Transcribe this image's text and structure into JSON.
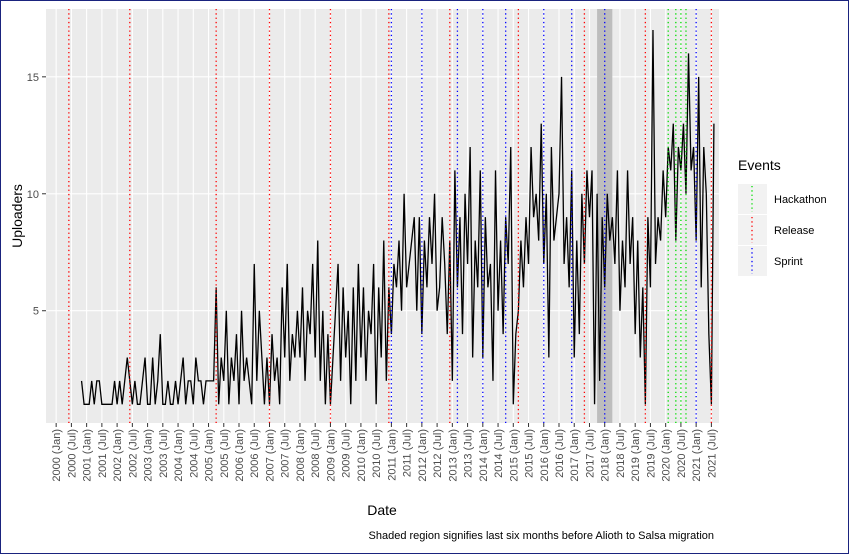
{
  "chart_data": {
    "type": "line",
    "xlabel": "Date",
    "ylabel": "Uploaders",
    "caption": "Shaded region signifies last six months before Alioth to Salsa migration",
    "legend_title": "Events",
    "grid": true,
    "xlim": [
      "1999-09",
      "2021-10"
    ],
    "ylim": [
      0.2,
      17.9
    ],
    "yticks": [
      5,
      10,
      15
    ],
    "xticks": [
      {
        "value": "2000-01",
        "label": "2000 (Jan)"
      },
      {
        "value": "2000-07",
        "label": "2000 (Jul)"
      },
      {
        "value": "2001-01",
        "label": "2001 (Jan)"
      },
      {
        "value": "2001-07",
        "label": "2001 (Jul)"
      },
      {
        "value": "2002-01",
        "label": "2002 (Jan)"
      },
      {
        "value": "2002-07",
        "label": "2002 (Jul)"
      },
      {
        "value": "2003-01",
        "label": "2003 (Jan)"
      },
      {
        "value": "2003-07",
        "label": "2003 (Jul)"
      },
      {
        "value": "2004-01",
        "label": "2004 (Jan)"
      },
      {
        "value": "2004-07",
        "label": "2004 (Jul)"
      },
      {
        "value": "2005-01",
        "label": "2005 (Jan)"
      },
      {
        "value": "2005-07",
        "label": "2005 (Jul)"
      },
      {
        "value": "2006-01",
        "label": "2006 (Jan)"
      },
      {
        "value": "2006-07",
        "label": "2006 (Jul)"
      },
      {
        "value": "2007-01",
        "label": "2007 (Jan)"
      },
      {
        "value": "2007-07",
        "label": "2007 (Jul)"
      },
      {
        "value": "2008-01",
        "label": "2008 (Jan)"
      },
      {
        "value": "2008-07",
        "label": "2008 (Jul)"
      },
      {
        "value": "2009-01",
        "label": "2009 (Jan)"
      },
      {
        "value": "2009-07",
        "label": "2009 (Jul)"
      },
      {
        "value": "2010-01",
        "label": "2010 (Jan)"
      },
      {
        "value": "2010-07",
        "label": "2010 (Jul)"
      },
      {
        "value": "2011-01",
        "label": "2011 (Jan)"
      },
      {
        "value": "2011-07",
        "label": "2011 (Jul)"
      },
      {
        "value": "2012-01",
        "label": "2012 (Jan)"
      },
      {
        "value": "2012-07",
        "label": "2012 (Jul)"
      },
      {
        "value": "2013-01",
        "label": "2013 (Jan)"
      },
      {
        "value": "2013-07",
        "label": "2013 (Jul)"
      },
      {
        "value": "2014-01",
        "label": "2014 (Jan)"
      },
      {
        "value": "2014-07",
        "label": "2014 (Jul)"
      },
      {
        "value": "2015-01",
        "label": "2015 (Jan)"
      },
      {
        "value": "2015-07",
        "label": "2015 (Jul)"
      },
      {
        "value": "2016-01",
        "label": "2016 (Jan)"
      },
      {
        "value": "2016-07",
        "label": "2016 (Jul)"
      },
      {
        "value": "2017-01",
        "label": "2017 (Jan)"
      },
      {
        "value": "2017-07",
        "label": "2017 (Jul)"
      },
      {
        "value": "2018-01",
        "label": "2018 (Jan)"
      },
      {
        "value": "2018-07",
        "label": "2018 (Jul)"
      },
      {
        "value": "2019-01",
        "label": "2019 (Jan)"
      },
      {
        "value": "2019-07",
        "label": "2019 (Jul)"
      },
      {
        "value": "2020-01",
        "label": "2020 (Jan)"
      },
      {
        "value": "2020-07",
        "label": "2020 (Jul)"
      },
      {
        "value": "2021-01",
        "label": "2021 (Jan)"
      },
      {
        "value": "2021-07",
        "label": "2021 (Jul)"
      }
    ],
    "shaded_region": [
      "2017-10",
      "2018-04"
    ],
    "shade_color": "#bdbdbd",
    "events": [
      {
        "name": "Hackathon",
        "color": "#00dd00",
        "dates": [
          "2020-02",
          "2020-05",
          "2020-07",
          "2020-09"
        ]
      },
      {
        "name": "Release",
        "color": "#ff0000",
        "dates": [
          "2000-06",
          "2002-06",
          "2005-04",
          "2007-01",
          "2009-01",
          "2010-12",
          "2012-12",
          "2015-03",
          "2017-05",
          "2019-05",
          "2021-07"
        ]
      },
      {
        "name": "Sprint",
        "color": "#0000ff",
        "dates": [
          "2011-01",
          "2012-01",
          "2013-03",
          "2014-01",
          "2014-10",
          "2016-01",
          "2016-12",
          "2018-01",
          "2021-01"
        ]
      }
    ],
    "x": [
      "2000-11",
      "2000-12",
      "2001-01",
      "2001-02",
      "2001-03",
      "2001-04",
      "2001-05",
      "2001-06",
      "2001-07",
      "2001-08",
      "2001-09",
      "2001-10",
      "2001-11",
      "2001-12",
      "2002-01",
      "2002-02",
      "2002-03",
      "2002-04",
      "2002-05",
      "2002-06",
      "2002-07",
      "2002-08",
      "2002-09",
      "2002-10",
      "2002-11",
      "2002-12",
      "2003-01",
      "2003-02",
      "2003-03",
      "2003-04",
      "2003-05",
      "2003-06",
      "2003-07",
      "2003-08",
      "2003-09",
      "2003-10",
      "2003-11",
      "2003-12",
      "2004-01",
      "2004-02",
      "2004-03",
      "2004-04",
      "2004-05",
      "2004-06",
      "2004-07",
      "2004-08",
      "2004-09",
      "2004-10",
      "2004-11",
      "2004-12",
      "2005-01",
      "2005-02",
      "2005-03",
      "2005-04",
      "2005-05",
      "2005-06",
      "2005-07",
      "2005-08",
      "2005-09",
      "2005-10",
      "2005-11",
      "2005-12",
      "2006-01",
      "2006-02",
      "2006-03",
      "2006-04",
      "2006-05",
      "2006-06",
      "2006-07",
      "2006-08",
      "2006-09",
      "2006-10",
      "2006-11",
      "2006-12",
      "2007-01",
      "2007-02",
      "2007-03",
      "2007-04",
      "2007-05",
      "2007-06",
      "2007-07",
      "2007-08",
      "2007-09",
      "2007-10",
      "2007-11",
      "2007-12",
      "2008-01",
      "2008-02",
      "2008-03",
      "2008-04",
      "2008-05",
      "2008-06",
      "2008-07",
      "2008-08",
      "2008-09",
      "2008-10",
      "2008-11",
      "2008-12",
      "2009-01",
      "2009-02",
      "2009-03",
      "2009-04",
      "2009-05",
      "2009-06",
      "2009-07",
      "2009-08",
      "2009-09",
      "2009-10",
      "2009-11",
      "2009-12",
      "2010-01",
      "2010-02",
      "2010-03",
      "2010-04",
      "2010-05",
      "2010-06",
      "2010-07",
      "2010-08",
      "2010-09",
      "2010-10",
      "2010-11",
      "2010-12",
      "2011-01",
      "2011-02",
      "2011-03",
      "2011-04",
      "2011-05",
      "2011-06",
      "2011-07",
      "2011-08",
      "2011-09",
      "2011-10",
      "2011-11",
      "2011-12",
      "2012-01",
      "2012-02",
      "2012-03",
      "2012-04",
      "2012-05",
      "2012-06",
      "2012-07",
      "2012-08",
      "2012-09",
      "2012-10",
      "2012-11",
      "2012-12",
      "2013-01",
      "2013-02",
      "2013-03",
      "2013-04",
      "2013-05",
      "2013-06",
      "2013-07",
      "2013-08",
      "2013-09",
      "2013-10",
      "2013-11",
      "2013-12",
      "2014-01",
      "2014-02",
      "2014-03",
      "2014-04",
      "2014-05",
      "2014-06",
      "2014-07",
      "2014-08",
      "2014-09",
      "2014-10",
      "2014-11",
      "2014-12",
      "2015-01",
      "2015-02",
      "2015-03",
      "2015-04",
      "2015-05",
      "2015-06",
      "2015-07",
      "2015-08",
      "2015-09",
      "2015-10",
      "2015-11",
      "2015-12",
      "2016-01",
      "2016-02",
      "2016-03",
      "2016-04",
      "2016-05",
      "2016-06",
      "2016-07",
      "2016-08",
      "2016-09",
      "2016-10",
      "2016-11",
      "2016-12",
      "2017-01",
      "2017-02",
      "2017-03",
      "2017-04",
      "2017-05",
      "2017-06",
      "2017-07",
      "2017-08",
      "2017-09",
      "2017-10",
      "2017-11",
      "2017-12",
      "2018-01",
      "2018-02",
      "2018-03",
      "2018-04",
      "2018-05",
      "2018-06",
      "2018-07",
      "2018-08",
      "2018-09",
      "2018-10",
      "2018-11",
      "2018-12",
      "2019-01",
      "2019-02",
      "2019-03",
      "2019-04",
      "2019-05",
      "2019-06",
      "2019-07",
      "2019-08",
      "2019-09",
      "2019-10",
      "2019-11",
      "2019-12",
      "2020-01",
      "2020-02",
      "2020-03",
      "2020-04",
      "2020-05",
      "2020-06",
      "2020-07",
      "2020-08",
      "2020-09",
      "2020-10",
      "2020-11",
      "2020-12",
      "2021-01",
      "2021-02",
      "2021-03",
      "2021-04",
      "2021-05",
      "2021-06",
      "2021-07",
      "2021-08"
    ],
    "series": [
      {
        "color": "#000000",
        "values": [
          2,
          1,
          1,
          1,
          2,
          1,
          2,
          2,
          1,
          1,
          1,
          1,
          1,
          2,
          1,
          2,
          1,
          2,
          3,
          2,
          1,
          2,
          1,
          1,
          2,
          3,
          1,
          1,
          3,
          1,
          2,
          4,
          1,
          1,
          2,
          1,
          1,
          2,
          1,
          2,
          3,
          1,
          2,
          2,
          1,
          3,
          2,
          2,
          1,
          2,
          2,
          2,
          2,
          6,
          1,
          3,
          2,
          5,
          1,
          3,
          2,
          4,
          1,
          5,
          2,
          3,
          2,
          1,
          7,
          2,
          5,
          3,
          1,
          3,
          1,
          4,
          2,
          3,
          1,
          6,
          3,
          7,
          2,
          4,
          3,
          5,
          3,
          6,
          2,
          5,
          4,
          7,
          3,
          8,
          2,
          5,
          1,
          4,
          1,
          3,
          5,
          7,
          2,
          6,
          3,
          5,
          1,
          6,
          2,
          7,
          3,
          6,
          2,
          5,
          4,
          7,
          1,
          6,
          3,
          8,
          2,
          6,
          4,
          7,
          6,
          8,
          5,
          10,
          6,
          7,
          8,
          9,
          5,
          9,
          4,
          8,
          6,
          9,
          7,
          10,
          5,
          6,
          9,
          7,
          4,
          8,
          2,
          11,
          6,
          9,
          4,
          10,
          7,
          12,
          3,
          8,
          6,
          11,
          3,
          9,
          6,
          7,
          2,
          11,
          5,
          8,
          4,
          9,
          7,
          12,
          1,
          4,
          5,
          8,
          6,
          9,
          7,
          12,
          9,
          10,
          8,
          13,
          7,
          10,
          3,
          12,
          8,
          9,
          10,
          15,
          7,
          9,
          6,
          11,
          3,
          8,
          4,
          10,
          7,
          11,
          9,
          11,
          1,
          10,
          2,
          9,
          6,
          10,
          8,
          9,
          7,
          11,
          5,
          8,
          6,
          11,
          7,
          9,
          4,
          8,
          3,
          6,
          1,
          9,
          6,
          17,
          7,
          9,
          8,
          11,
          9,
          12,
          11,
          13,
          8,
          12,
          11,
          13,
          10,
          16,
          11,
          12,
          8,
          15,
          6,
          12,
          10,
          4,
          1,
          13
        ]
      }
    ]
  }
}
